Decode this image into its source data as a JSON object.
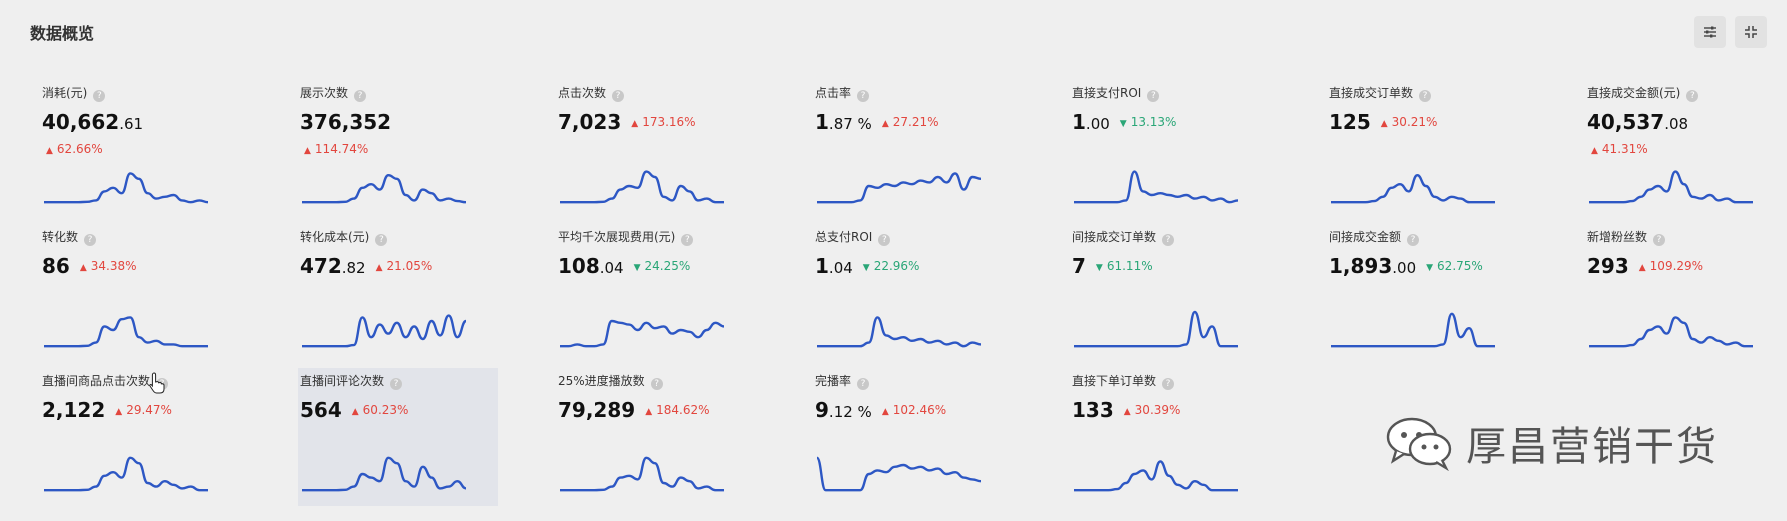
{
  "page": {
    "title": "数据概览"
  },
  "toolbar": {
    "settings_icon": "sliders-icon",
    "collapse_icon": "collapse-icon"
  },
  "colors": {
    "up": "#e2463e",
    "down": "#2aa677",
    "line": "#2d57c4"
  },
  "cards": [
    {
      "label": "消耗(元)",
      "int": "40,662",
      "dec": ".61",
      "dir": "up",
      "change": "62.66%",
      "series": [
        0.05,
        0.05,
        0.05,
        0.05,
        0.05,
        0.06,
        0.1,
        0.35,
        0.45,
        0.3,
        0.85,
        0.7,
        0.3,
        0.15,
        0.2,
        0.25,
        0.1,
        0.05,
        0.1,
        0.05
      ]
    },
    {
      "label": "展示次数",
      "int": "376,352",
      "dec": "",
      "dir": "up",
      "change": "114.74%",
      "series": [
        0.05,
        0.05,
        0.05,
        0.05,
        0.05,
        0.06,
        0.15,
        0.45,
        0.55,
        0.4,
        0.8,
        0.7,
        0.25,
        0.1,
        0.4,
        0.3,
        0.1,
        0.15,
        0.08,
        0.05
      ]
    },
    {
      "label": "点击次数",
      "int": "7,023",
      "dec": "",
      "dir": "up",
      "change": "173.16%",
      "series": [
        0.05,
        0.05,
        0.05,
        0.05,
        0.05,
        0.06,
        0.15,
        0.4,
        0.5,
        0.45,
        0.9,
        0.75,
        0.2,
        0.1,
        0.5,
        0.35,
        0.1,
        0.15,
        0.05,
        0.05
      ]
    },
    {
      "label": "点击率",
      "int": "1",
      "dec": ".87 %",
      "dir": "up",
      "change": "27.21%",
      "series": [
        0.05,
        0.05,
        0.05,
        0.05,
        0.05,
        0.1,
        0.5,
        0.45,
        0.55,
        0.5,
        0.6,
        0.55,
        0.65,
        0.6,
        0.75,
        0.6,
        0.85,
        0.4,
        0.75,
        0.7
      ]
    },
    {
      "label": "直接支付ROI",
      "int": "1",
      "dec": ".00",
      "dir": "down",
      "change": "13.13%",
      "series": [
        0.05,
        0.05,
        0.05,
        0.05,
        0.05,
        0.05,
        0.1,
        0.9,
        0.35,
        0.25,
        0.3,
        0.25,
        0.2,
        0.25,
        0.15,
        0.2,
        0.1,
        0.15,
        0.05,
        0.1
      ]
    },
    {
      "label": "直接成交订单数",
      "int": "125",
      "dec": "",
      "dir": "up",
      "change": "30.21%",
      "series": [
        0.05,
        0.05,
        0.05,
        0.05,
        0.05,
        0.08,
        0.2,
        0.45,
        0.55,
        0.35,
        0.8,
        0.5,
        0.2,
        0.1,
        0.2,
        0.15,
        0.05,
        0.05,
        0.05,
        0.05
      ]
    },
    {
      "label": "直接成交金额(元)",
      "int": "40,537",
      "dec": ".08",
      "dir": "up",
      "change": "41.31%",
      "series": [
        0.05,
        0.05,
        0.05,
        0.05,
        0.05,
        0.08,
        0.2,
        0.4,
        0.5,
        0.35,
        0.9,
        0.55,
        0.2,
        0.15,
        0.25,
        0.1,
        0.15,
        0.05,
        0.05,
        0.05
      ]
    },
    {
      "label": "转化数",
      "int": "86",
      "dec": "",
      "dir": "up",
      "change": "34.38%",
      "series": [
        0.05,
        0.05,
        0.05,
        0.05,
        0.05,
        0.06,
        0.15,
        0.6,
        0.5,
        0.8,
        0.85,
        0.3,
        0.15,
        0.2,
        0.1,
        0.1,
        0.05,
        0.05,
        0.05,
        0.05
      ]
    },
    {
      "label": "转化成本(元)",
      "int": "472",
      "dec": ".82",
      "dir": "up",
      "change": "21.05%",
      "series": [
        0.05,
        0.05,
        0.05,
        0.05,
        0.05,
        0.05,
        0.08,
        0.85,
        0.3,
        0.65,
        0.4,
        0.7,
        0.3,
        0.6,
        0.25,
        0.75,
        0.35,
        0.9,
        0.3,
        0.75
      ]
    },
    {
      "label": "平均千次展现费用(元)",
      "int": "108",
      "dec": ".04",
      "dir": "down",
      "change": "24.25%",
      "series": [
        0.05,
        0.05,
        0.1,
        0.05,
        0.05,
        0.1,
        0.75,
        0.7,
        0.65,
        0.5,
        0.7,
        0.55,
        0.6,
        0.4,
        0.5,
        0.45,
        0.3,
        0.5,
        0.7,
        0.6
      ]
    },
    {
      "label": "总支付ROI",
      "int": "1",
      "dec": ".04",
      "dir": "down",
      "change": "22.96%",
      "series": [
        0.05,
        0.05,
        0.05,
        0.05,
        0.05,
        0.05,
        0.15,
        0.85,
        0.35,
        0.25,
        0.3,
        0.2,
        0.25,
        0.15,
        0.2,
        0.1,
        0.15,
        0.05,
        0.15,
        0.1
      ]
    },
    {
      "label": "间接成交订单数",
      "int": "7",
      "dec": "",
      "dir": "down",
      "change": "61.11%",
      "series": [
        0.05,
        0.05,
        0.05,
        0.05,
        0.05,
        0.05,
        0.05,
        0.05,
        0.05,
        0.05,
        0.05,
        0.05,
        0.05,
        0.1,
        1.0,
        0.3,
        0.6,
        0.05,
        0.05,
        0.05
      ]
    },
    {
      "label": "间接成交金额",
      "int": "1,893",
      "dec": ".00",
      "dir": "down",
      "change": "62.75%",
      "series": [
        0.05,
        0.05,
        0.05,
        0.05,
        0.05,
        0.05,
        0.05,
        0.05,
        0.05,
        0.05,
        0.05,
        0.05,
        0.05,
        0.1,
        0.95,
        0.3,
        0.55,
        0.05,
        0.05,
        0.05
      ]
    },
    {
      "label": "新增粉丝数",
      "int": "293",
      "dec": "",
      "dir": "up",
      "change": "109.29%",
      "series": [
        0.05,
        0.05,
        0.05,
        0.05,
        0.05,
        0.08,
        0.25,
        0.5,
        0.6,
        0.4,
        0.85,
        0.7,
        0.25,
        0.15,
        0.3,
        0.2,
        0.1,
        0.15,
        0.05,
        0.05
      ]
    },
    {
      "label": "直播间商品点击次数",
      "int": "2,122",
      "dec": "",
      "dir": "up",
      "change": "29.47%",
      "series": [
        0.05,
        0.05,
        0.05,
        0.05,
        0.05,
        0.06,
        0.15,
        0.45,
        0.55,
        0.4,
        0.95,
        0.8,
        0.25,
        0.15,
        0.3,
        0.2,
        0.1,
        0.15,
        0.05,
        0.05
      ]
    },
    {
      "label": "直播间评论次数",
      "int": "564",
      "dec": "",
      "dir": "up",
      "change": "60.23%",
      "series": [
        0.05,
        0.05,
        0.05,
        0.05,
        0.05,
        0.06,
        0.15,
        0.5,
        0.4,
        0.3,
        0.95,
        0.8,
        0.3,
        0.15,
        0.7,
        0.4,
        0.1,
        0.15,
        0.3,
        0.1
      ]
    },
    {
      "label": "25%进度播放数",
      "int": "79,289",
      "dec": "",
      "dir": "up",
      "change": "184.62%",
      "series": [
        0.05,
        0.05,
        0.05,
        0.05,
        0.05,
        0.06,
        0.15,
        0.4,
        0.45,
        0.35,
        0.95,
        0.8,
        0.25,
        0.15,
        0.4,
        0.3,
        0.1,
        0.15,
        0.05,
        0.05
      ]
    },
    {
      "label": "完播率",
      "int": "9",
      "dec": ".12 %",
      "dir": "up",
      "change": "102.46%",
      "series": [
        0.95,
        0.05,
        0.05,
        0.05,
        0.05,
        0.05,
        0.5,
        0.6,
        0.55,
        0.7,
        0.75,
        0.65,
        0.7,
        0.6,
        0.65,
        0.5,
        0.55,
        0.4,
        0.35,
        0.3
      ]
    },
    {
      "label": "直接下单订单数",
      "int": "133",
      "dec": "",
      "dir": "up",
      "change": "30.39%",
      "series": [
        0.05,
        0.05,
        0.05,
        0.05,
        0.05,
        0.08,
        0.25,
        0.5,
        0.6,
        0.35,
        0.85,
        0.45,
        0.2,
        0.1,
        0.3,
        0.2,
        0.05,
        0.05,
        0.05,
        0.05
      ]
    }
  ],
  "watermark": {
    "text": "厚昌营销干货",
    "icon": "wechat-icon"
  }
}
